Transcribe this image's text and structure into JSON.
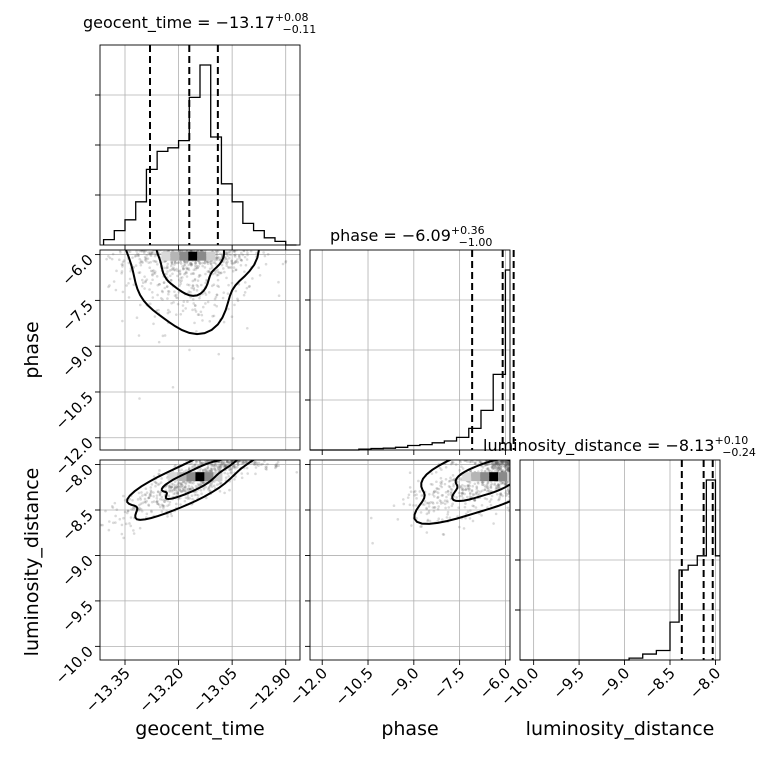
{
  "chart_data": {
    "type": "corner",
    "parameters": [
      "geocent_time",
      "phase",
      "luminosity_distance"
    ],
    "axis_labels": [
      "geocent_time",
      "phase",
      "luminosity_distance"
    ],
    "ranges": [
      [
        -13.42,
        -12.86
      ],
      [
        -12.4,
        -5.85
      ],
      [
        -10.15,
        -7.95
      ]
    ],
    "ticks": [
      {
        "values": [
          -13.35,
          -13.2,
          -13.05,
          -12.9
        ],
        "labels": [
          "−13.35",
          "−13.20",
          "−13.05",
          "−12.90"
        ]
      },
      {
        "values": [
          -12.0,
          -10.5,
          -9.0,
          -7.5,
          -6.0
        ],
        "labels": [
          "−12.0",
          "−10.5",
          "−9.0",
          "−7.5",
          "−6.0"
        ]
      },
      {
        "values": [
          -10.0,
          -9.5,
          -9.0,
          -8.5,
          -8.0
        ],
        "labels": [
          "−10.0",
          "−9.5",
          "−9.0",
          "−8.5",
          "−8.0"
        ]
      }
    ],
    "marginals": [
      {
        "title_name": "geocent_time",
        "median": "−13.17",
        "upper": "+0.08",
        "lower": "−0.11",
        "quantiles": [
          -13.28,
          -13.17,
          -13.09
        ],
        "bin_edges": [
          -13.41,
          -13.38,
          -13.35,
          -13.32,
          -13.29,
          -13.26,
          -13.23,
          -13.2,
          -13.17,
          -13.14,
          -13.11,
          -13.08,
          -13.05,
          -13.02,
          -12.99,
          -12.96,
          -12.93,
          -12.9,
          -12.87
        ],
        "counts": [
          3,
          8,
          14,
          24,
          42,
          52,
          54,
          58,
          82,
          100,
          60,
          34,
          24,
          12,
          8,
          4,
          2,
          0
        ]
      },
      {
        "title_name": "phase",
        "median": "−6.09",
        "upper": "+0.36",
        "lower": "−1.00",
        "quantiles": [
          -7.09,
          -6.09,
          -5.73
        ],
        "bin_edges": [
          -12.4,
          -12.0,
          -11.6,
          -11.2,
          -10.8,
          -10.4,
          -10.0,
          -9.6,
          -9.2,
          -8.8,
          -8.4,
          -8.0,
          -7.6,
          -7.2,
          -6.8,
          -6.4,
          -6.0,
          -5.85
        ],
        "counts": [
          0,
          0,
          0,
          0,
          0.5,
          0.8,
          1,
          1.5,
          2.5,
          3,
          4,
          5,
          7,
          12,
          22,
          42,
          100
        ]
      },
      {
        "title_name": "luminosity_distance",
        "median": "−8.13",
        "upper": "+0.10",
        "lower": "−0.24",
        "quantiles": [
          -8.37,
          -8.13,
          -8.03
        ],
        "bin_edges": [
          -10.15,
          -10.0,
          -9.85,
          -9.7,
          -9.55,
          -9.4,
          -9.25,
          -9.1,
          -8.95,
          -8.8,
          -8.65,
          -8.5,
          -8.4,
          -8.3,
          -8.2,
          -8.1,
          -8.0,
          -7.95
        ],
        "counts": [
          0,
          0,
          0,
          0,
          0,
          0,
          0,
          0,
          0.8,
          2.5,
          4,
          16,
          38,
          40,
          44,
          76,
          44
        ]
      }
    ],
    "pairs": [
      {
        "x_param": "geocent_time",
        "y_param": "phase",
        "center": [
          -13.17,
          -6.1
        ],
        "spread": [
          0.09,
          1.1
        ],
        "correlation": 0.0
      },
      {
        "x_param": "geocent_time",
        "y_param": "luminosity_distance",
        "center": [
          -13.15,
          -8.15
        ],
        "spread": [
          0.1,
          0.22
        ],
        "correlation": 0.85
      },
      {
        "x_param": "phase",
        "y_param": "luminosity_distance",
        "center": [
          -6.5,
          -8.15
        ],
        "spread": [
          1.3,
          0.22
        ],
        "correlation": 0.6
      }
    ]
  }
}
